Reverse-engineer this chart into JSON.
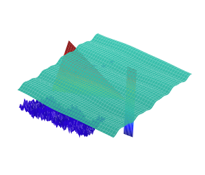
{
  "background_color": "#ffffff",
  "figsize": [
    3.0,
    2.56
  ],
  "dpi": 100,
  "teal_color": "#3ec8b4",
  "teal_dark": "#2aaa98",
  "blue_deep": "#1a10cc",
  "blue_mid": "#3030ee",
  "cross_cmap": "jet",
  "elev": 28,
  "azim": -50,
  "seed": 42
}
